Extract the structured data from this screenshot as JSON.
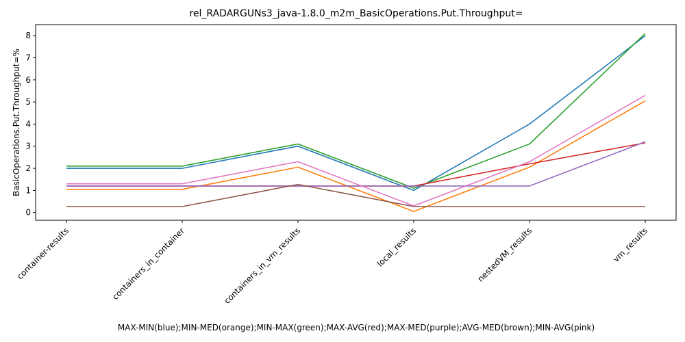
{
  "chart_data": {
    "type": "line",
    "title": "rel_RADARGUNs3_java-1.8.0_m2m_BasicOperations.Put.Throughput=",
    "xlabel": "MAX-MIN(blue);MIN-MED(orange);MIN-MAX(green);MAX-AVG(red);MAX-MED(purple);AVG-MED(brown);MIN-AVG(pink)",
    "ylabel": "BasicOperations.Put.Throughput=%",
    "categories": [
      "container-results",
      "containers_in_container",
      "containers_in_vm_results",
      "local_results",
      "nestedVM_results",
      "vm_results"
    ],
    "yticks": [
      0,
      1,
      2,
      3,
      4,
      5,
      6,
      7,
      8
    ],
    "ylim": [
      -0.35,
      8.5
    ],
    "grid": false,
    "series": [
      {
        "color": "#1f77b4",
        "values": [
          2.0,
          2.0,
          3.0,
          1.0,
          4.0,
          8.0
        ]
      },
      {
        "color": "#ff7f0e",
        "values": [
          1.05,
          1.05,
          2.05,
          0.05,
          2.05,
          5.05
        ]
      },
      {
        "color": "#2ca02c",
        "values": [
          2.1,
          2.1,
          3.1,
          1.1,
          3.1,
          8.1
        ]
      },
      {
        "color": "#d62728",
        "values": [
          1.2,
          1.2,
          1.2,
          1.2,
          2.2,
          3.15
        ]
      },
      {
        "color": "#9467bd",
        "values": [
          1.2,
          1.2,
          1.2,
          1.2,
          1.2,
          3.2
        ]
      },
      {
        "color": "#8c564b",
        "values": [
          0.27,
          0.27,
          1.27,
          0.27,
          0.27,
          0.27
        ]
      },
      {
        "color": "#e377c2",
        "values": [
          1.3,
          1.3,
          2.3,
          0.3,
          2.3,
          5.3
        ]
      }
    ]
  }
}
